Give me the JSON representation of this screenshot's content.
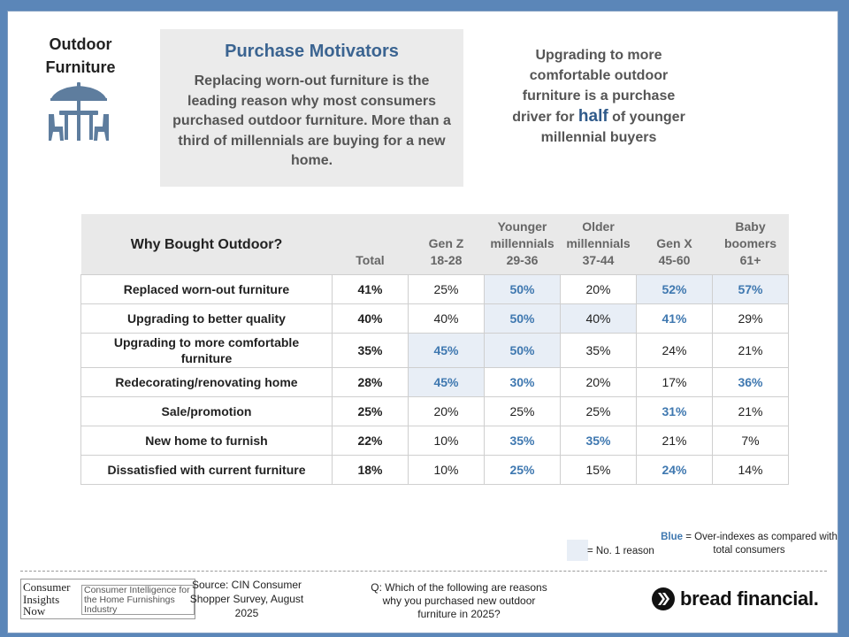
{
  "header": {
    "category_title": "Outdoor Furniture",
    "summary_title": "Purchase Motivators",
    "summary_text": "Replacing worn-out furniture is the leading reason why most consumers purchased outdoor furniture. More than a third of millennials are buying for a new home.",
    "callout_before": "Upgrading to more comfortable outdoor furniture is a purchase driver for",
    "callout_highlight": "half",
    "callout_after": "of younger millennial buyers"
  },
  "table": {
    "question_header": "Why Bought Outdoor?",
    "columns": [
      {
        "line1": "Total",
        "line2": "",
        "line3": ""
      },
      {
        "line1": "Gen Z",
        "line2": "18-28",
        "line3": ""
      },
      {
        "line1": "Younger",
        "line2": "millennials",
        "line3": "29-36"
      },
      {
        "line1": "Older",
        "line2": "millennials",
        "line3": "37-44"
      },
      {
        "line1": "Gen X",
        "line2": "45-60",
        "line3": ""
      },
      {
        "line1": "Baby",
        "line2": "boomers",
        "line3": "61+"
      }
    ],
    "rows": [
      {
        "label": "Replaced worn-out furniture",
        "total": "41%",
        "genz": "25%",
        "younger_millennials": "50%",
        "older_millennials": "20%",
        "genx": "52%",
        "boomers": "57%"
      },
      {
        "label": "Upgrading to better quality",
        "total": "40%",
        "genz": "40%",
        "younger_millennials": "50%",
        "older_millennials": "40%",
        "genx": "41%",
        "boomers": "29%"
      },
      {
        "label": "Upgrading to more comfortable furniture",
        "total": "35%",
        "genz": "45%",
        "younger_millennials": "50%",
        "older_millennials": "35%",
        "genx": "24%",
        "boomers": "21%"
      },
      {
        "label": "Redecorating/renovating home",
        "total": "28%",
        "genz": "45%",
        "younger_millennials": "30%",
        "older_millennials": "20%",
        "genx": "17%",
        "boomers": "36%"
      },
      {
        "label": "Sale/promotion",
        "total": "25%",
        "genz": "20%",
        "younger_millennials": "25%",
        "older_millennials": "25%",
        "genx": "31%",
        "boomers": "21%"
      },
      {
        "label": "New home to furnish",
        "total": "22%",
        "genz": "10%",
        "younger_millennials": "35%",
        "older_millennials": "35%",
        "genx": "21%",
        "boomers": "7%"
      },
      {
        "label": "Dissatisfied with current furniture",
        "total": "18%",
        "genz": "10%",
        "younger_millennials": "25%",
        "older_millennials": "15%",
        "genx": "24%",
        "boomers": "14%"
      }
    ]
  },
  "legend": {
    "blue_word": "Blue",
    "blue_text": " = Over-indexes as compared with total consumers",
    "no1_text": "= No. 1 reason",
    "blue_color": "#3f78b0",
    "shade_color": "#e8eef6"
  },
  "footer": {
    "cin_logo_left": "Consumer Insights Now",
    "cin_logo_right": "Consumer Intelligence for the Home Furnishings Industry",
    "source": "Source: CIN Consumer Shopper Survey, August 2025",
    "question": "Q: Which of the following are reasons why you purchased new outdoor furniture in 2025?",
    "brand": "bread financial."
  }
}
